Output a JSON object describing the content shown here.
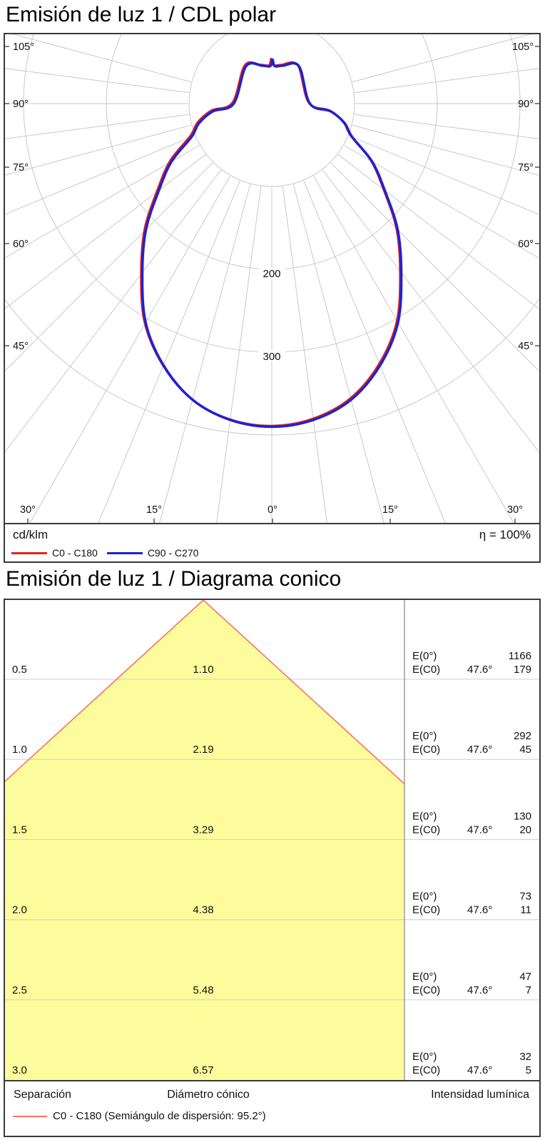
{
  "polar": {
    "title": "Emisión de luz 1 / CDL polar",
    "unit": "cd/klm",
    "efficiency": "η = 100%",
    "legend": [
      {
        "label": "C0 - C180",
        "color": "#e02424"
      },
      {
        "label": "C90 - C270",
        "color": "#2121d1"
      }
    ],
    "angle_labels_left": [
      "105°",
      "90°",
      "75°",
      "60°",
      "45°"
    ],
    "angle_labels_right": [
      "105°",
      "90°",
      "75°",
      "60°",
      "45°"
    ],
    "angle_labels_bottom": [
      "30°",
      "15°",
      "0°",
      "15°",
      "30°"
    ],
    "circle_labels": [
      "200",
      "300"
    ]
  },
  "cone": {
    "title": "Emisión de luz 1 / Diagrama conico",
    "e0_label": "E(0°)",
    "ec0_label": "E(C0)",
    "rows": [
      {
        "separation": "0.5",
        "diameter": "1.10",
        "e0": "1166",
        "ec0": "179",
        "angle": "47.6°"
      },
      {
        "separation": "1.0",
        "diameter": "2.19",
        "e0": "292",
        "ec0": "45",
        "angle": "47.6°"
      },
      {
        "separation": "1.5",
        "diameter": "3.29",
        "e0": "130",
        "ec0": "20",
        "angle": "47.6°"
      },
      {
        "separation": "2.0",
        "diameter": "4.38",
        "e0": "73",
        "ec0": "11",
        "angle": "47.6°"
      },
      {
        "separation": "2.5",
        "diameter": "5.48",
        "e0": "47",
        "ec0": "7",
        "angle": "47.6°"
      },
      {
        "separation": "3.0",
        "diameter": "6.57",
        "e0": "32",
        "ec0": "5",
        "angle": "47.6°"
      }
    ],
    "footer": {
      "separation": "Separación",
      "diameter": "Diámetro cónico",
      "intensity": "Intensidad lumínica"
    },
    "legend_label": "C0 - C180 (Semiángulo de dispersión: 95.2°)",
    "colors": {
      "fill": "#fcfc9c",
      "edge": "#f4736a"
    }
  },
  "chart_data": [
    {
      "type": "polar",
      "title": "Emisión de luz 1 / CDL polar",
      "unit": "cd/klm",
      "efficiency": "η = 100%",
      "angle_range_deg": [
        -105,
        105
      ],
      "angle_step_major_deg": 15,
      "angle_step_minor_deg": 7.5,
      "radial_ticks": [
        100,
        200,
        300,
        400
      ],
      "radial_tick_labels": [
        "200",
        "300"
      ],
      "gamma_deg": [
        0,
        7.5,
        15,
        22.5,
        30,
        37.5,
        45,
        52.5,
        60,
        67.5,
        75,
        82.5,
        90
      ],
      "series": [
        {
          "name": "C0 - C180",
          "color": "#e02424",
          "values": [
            390,
            385,
            370,
            342,
            305,
            257,
            215,
            172,
            140,
            105,
            91,
            72,
            46
          ],
          "note": "coincides with C90 - C270 curve, hidden behind it"
        },
        {
          "name": "C90 - C270",
          "color": "#2121d1",
          "values": [
            390,
            385,
            370,
            342,
            305,
            257,
            215,
            172,
            140,
            105,
            91,
            72,
            46
          ]
        }
      ]
    },
    {
      "type": "cone-diagram",
      "title": "Emisión de luz 1 / Diagrama conico",
      "beam_half_angle_deg": 47.6,
      "beam_full_angle_deg": 95.2,
      "separation_m": [
        0.5,
        1.0,
        1.5,
        2.0,
        2.5,
        3.0
      ],
      "cone_diameter_m": [
        1.1,
        2.19,
        3.29,
        4.38,
        5.48,
        6.57
      ],
      "E0_lux": [
        1166,
        292,
        130,
        73,
        47,
        32
      ],
      "EC0_lux": [
        179,
        45,
        20,
        11,
        7,
        5
      ],
      "legend": "C0 - C180 (Semiángulo de dispersión: 95.2°)"
    }
  ]
}
